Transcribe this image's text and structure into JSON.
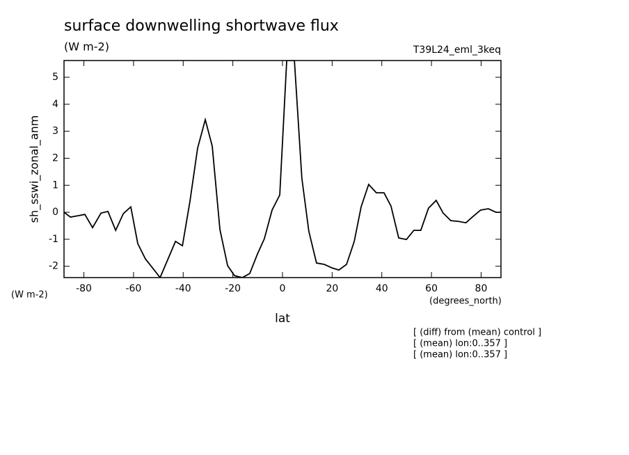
{
  "chart_data": {
    "type": "line",
    "title": "surface downwelling shortwave flux",
    "subtitle": "(W m-2)",
    "run_label": "T39L24_eml_3keq",
    "y_label": "sh_sswi_zonal_anm",
    "y_units": "(W m-2)",
    "x_label": "lat",
    "x_units": "(degrees_north)",
    "notes": [
      "[ (diff) from (mean) control ]",
      "[ (mean) lon:0..357 ]",
      "[ (mean) lon:0..357 ]"
    ],
    "x": [
      -88.0,
      -85.4,
      -82.4,
      -79.6,
      -76.5,
      -73.1,
      -70.3,
      -67.2,
      -64.1,
      -61.1,
      -58.3,
      -55.2,
      -52.1,
      -49.3,
      -46.2,
      -43.1,
      -40.3,
      -37.3,
      -34.2,
      -31.1,
      -28.3,
      -25.2,
      -22.1,
      -19.3,
      -16.2,
      -13.2,
      -10.1,
      -7.3,
      -4.2,
      -1.1,
      1.7,
      4.8,
      7.8,
      10.6,
      13.7,
      16.8,
      19.9,
      22.7,
      25.8,
      28.9,
      31.7,
      34.7,
      37.8,
      40.9,
      43.7,
      46.8,
      49.9,
      52.9,
      55.7,
      58.8,
      61.9,
      64.7,
      67.8,
      70.9,
      73.9,
      76.8,
      79.8,
      82.9,
      86.0,
      88.0
    ],
    "series": [
      {
        "color": "#000000",
        "values": [
          0,
          -0.18,
          -0.13,
          -0.08,
          -0.57,
          -0.03,
          0.03,
          -0.67,
          -0.05,
          0.2,
          -1.16,
          -1.73,
          -2.09,
          -2.42,
          -1.75,
          -1.08,
          -1.24,
          0.39,
          2.37,
          3.43,
          2.45,
          -0.64,
          -1.98,
          -2.35,
          -2.42,
          -2.27,
          -1.55,
          -0.98,
          0.08,
          0.64,
          5.62,
          5.62,
          1.26,
          -0.7,
          -1.88,
          -1.93,
          -2.06,
          -2.14,
          -1.93,
          -1.08,
          0.21,
          1.03,
          0.72,
          0.72,
          0.23,
          -0.95,
          -1.01,
          -0.67,
          -0.67,
          0.15,
          0.44,
          -0.03,
          -0.31,
          -0.34,
          -0.39,
          -0.15,
          0.08,
          0.13,
          0,
          0
        ]
      }
    ],
    "xlim": [
      -88,
      88
    ],
    "xticks": [
      -80,
      -60,
      -40,
      -20,
      0,
      20,
      40,
      60,
      80
    ],
    "ylim": [
      -2.42,
      5.62
    ],
    "yticks": [
      -2,
      -1,
      0,
      1,
      2,
      3,
      4,
      5
    ]
  }
}
